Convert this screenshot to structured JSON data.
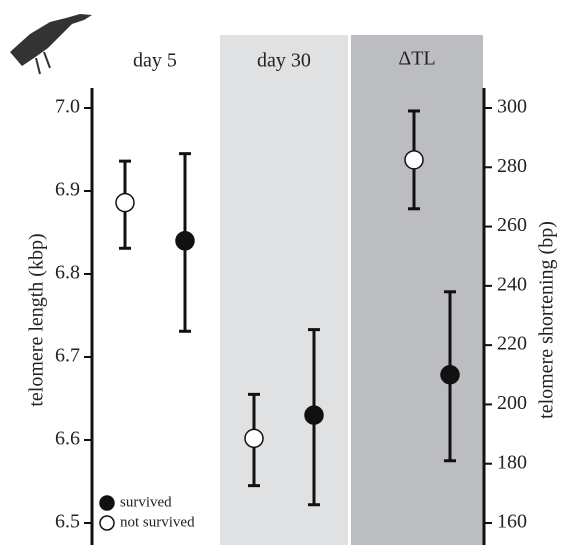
{
  "chart_data": {
    "type": "errorbar",
    "categories": [
      "day 5",
      "day 30"
    ],
    "y2_category": "ΔTL",
    "ylabel": "telomere length (kbp)",
    "y2label": "telomere shortening (bp)",
    "ylim": [
      6.5,
      7.0
    ],
    "yticks": [
      6.5,
      6.6,
      6.7,
      6.8,
      6.9,
      {
        "value": 7,
        "label": "7.0"
      }
    ],
    "y2lim": [
      160,
      300
    ],
    "y2ticks": [
      160,
      180,
      200,
      220,
      240,
      260,
      280,
      300
    ],
    "legend": "lower left",
    "series": [
      {
        "name": "not survived",
        "color": "#ffffff",
        "values": [
          6.886,
          6.602
        ],
        "low": [
          6.831,
          6.545
        ],
        "high": [
          6.936,
          6.655
        ],
        "y2_values": [
          282.5
        ],
        "y2_low": [
          266
        ],
        "y2_high": [
          299
        ]
      },
      {
        "name": "survived",
        "color": "#111111",
        "values": [
          6.84,
          6.63
        ],
        "low": [
          6.731,
          6.522
        ],
        "high": [
          6.945,
          6.733
        ],
        "y2_values": [
          210
        ],
        "y2_low": [
          181
        ],
        "y2_high": [
          238
        ]
      }
    ]
  }
}
